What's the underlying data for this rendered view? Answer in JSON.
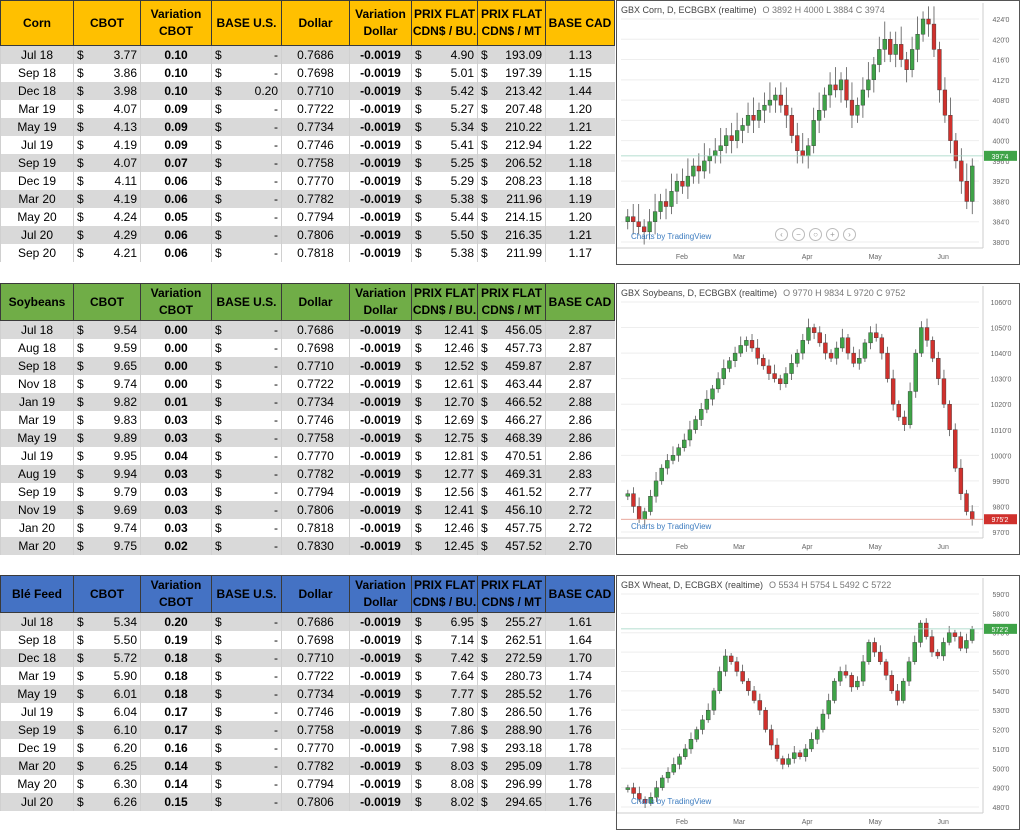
{
  "columns": [
    "CBOT",
    "Variation CBOT",
    "BASE U.S.",
    "Dollar",
    "Variation Dollar",
    "PRIX FLAT CDN$ / BU.",
    "PRIX FLAT CDN$ / MT",
    "BASE CAD"
  ],
  "colors": {
    "corn": "#ffc000",
    "soybeans": "#70ad47",
    "wheat": "#4472c4",
    "positive": "#19a84e",
    "negative": "#e00000",
    "bull": "#3fa348",
    "bear": "#d0312d"
  },
  "sections": [
    {
      "name": "Corn",
      "header": [
        "CBOT",
        "Variation\nCBOT",
        "BASE U.S.",
        "Dollar",
        "Variation\nDollar",
        "PRIX FLAT\nCDN$ / BU.",
        "PRIX FLAT\nCDN$ / MT",
        "BASE CAD"
      ],
      "rows": [
        [
          "Jul 18",
          "3.77",
          "0.10",
          "-",
          "0.7686",
          "-0.0019",
          "4.90",
          "193.09",
          "1.13"
        ],
        [
          "Sep 18",
          "3.86",
          "0.10",
          "-",
          "0.7698",
          "-0.0019",
          "5.01",
          "197.39",
          "1.15"
        ],
        [
          "Dec 18",
          "3.98",
          "0.10",
          "0.20",
          "0.7710",
          "-0.0019",
          "5.42",
          "213.42",
          "1.44"
        ],
        [
          "Mar 19",
          "4.07",
          "0.09",
          "-",
          "0.7722",
          "-0.0019",
          "5.27",
          "207.48",
          "1.20"
        ],
        [
          "May 19",
          "4.13",
          "0.09",
          "-",
          "0.7734",
          "-0.0019",
          "5.34",
          "210.22",
          "1.21"
        ],
        [
          "Jul 19",
          "4.19",
          "0.09",
          "-",
          "0.7746",
          "-0.0019",
          "5.41",
          "212.94",
          "1.22"
        ],
        [
          "Sep 19",
          "4.07",
          "0.07",
          "-",
          "0.7758",
          "-0.0019",
          "5.25",
          "206.52",
          "1.18"
        ],
        [
          "Dec 19",
          "4.11",
          "0.06",
          "-",
          "0.7770",
          "-0.0019",
          "5.29",
          "208.23",
          "1.18"
        ],
        [
          "Mar 20",
          "4.19",
          "0.06",
          "-",
          "0.7782",
          "-0.0019",
          "5.38",
          "211.96",
          "1.19"
        ],
        [
          "May 20",
          "4.24",
          "0.05",
          "-",
          "0.7794",
          "-0.0019",
          "5.44",
          "214.15",
          "1.20"
        ],
        [
          "Jul 20",
          "4.29",
          "0.06",
          "-",
          "0.7806",
          "-0.0019",
          "5.50",
          "216.35",
          "1.21"
        ],
        [
          "Sep 20",
          "4.21",
          "0.06",
          "-",
          "0.7818",
          "-0.0019",
          "5.38",
          "211.99",
          "1.17"
        ]
      ],
      "chart": {
        "title": "GBX Corn, D, ECBGBX (realtime)",
        "ohlc": "O 3892 H 4000 L 3884 C 3974",
        "yticks": [
          "424'0",
          "420'0",
          "416'0",
          "412'0",
          "408'0",
          "404'0",
          "400'0",
          "396'0",
          "392'0",
          "388'0",
          "384'0",
          "380'0"
        ],
        "xticks": [
          "Feb",
          "Mar",
          "Apr",
          "May",
          "Jun"
        ],
        "last": "397'4",
        "closes": [
          385,
          384,
          383,
          382,
          384,
          386,
          388,
          387,
          390,
          392,
          391,
          393,
          395,
          394,
          396,
          397,
          398,
          399,
          401,
          400,
          402,
          403,
          405,
          404,
          406,
          407,
          408,
          409,
          407,
          405,
          401,
          398,
          397,
          399,
          404,
          406,
          409,
          411,
          410,
          412,
          408,
          405,
          407,
          410,
          412,
          415,
          418,
          420,
          417,
          419,
          416,
          414,
          418,
          421,
          424,
          423,
          418,
          410,
          405,
          400,
          396,
          392,
          388,
          395
        ]
      },
      "watermark": "Charts by TradingView"
    },
    {
      "name": "Soybeans",
      "header": [
        "CBOT",
        "Variation\nCBOT",
        "BASE U.S.",
        "Dollar",
        "Variation\nDollar",
        "PRIX FLAT\nCDN$ / BU.",
        "PRIX FLAT\nCDN$ / MT",
        "BASE CAD"
      ],
      "rows": [
        [
          "Jul 18",
          "9.54",
          "0.00",
          "-",
          "0.7686",
          "-0.0019",
          "12.41",
          "456.05",
          "2.87"
        ],
        [
          "Aug 18",
          "9.59",
          "0.00",
          "-",
          "0.7698",
          "-0.0019",
          "12.46",
          "457.73",
          "2.87"
        ],
        [
          "Sep 18",
          "9.65",
          "0.00",
          "-",
          "0.7710",
          "-0.0019",
          "12.52",
          "459.87",
          "2.87"
        ],
        [
          "Nov 18",
          "9.74",
          "0.00",
          "-",
          "0.7722",
          "-0.0019",
          "12.61",
          "463.44",
          "2.87"
        ],
        [
          "Jan 19",
          "9.82",
          "0.01",
          "-",
          "0.7734",
          "-0.0019",
          "12.70",
          "466.52",
          "2.88"
        ],
        [
          "Mar 19",
          "9.83",
          "0.03",
          "-",
          "0.7746",
          "-0.0019",
          "12.69",
          "466.27",
          "2.86"
        ],
        [
          "May 19",
          "9.89",
          "0.03",
          "-",
          "0.7758",
          "-0.0019",
          "12.75",
          "468.39",
          "2.86"
        ],
        [
          "Jul 19",
          "9.95",
          "0.04",
          "-",
          "0.7770",
          "-0.0019",
          "12.81",
          "470.51",
          "2.86"
        ],
        [
          "Aug 19",
          "9.94",
          "0.03",
          "-",
          "0.7782",
          "-0.0019",
          "12.77",
          "469.31",
          "2.83"
        ],
        [
          "Sep 19",
          "9.79",
          "0.03",
          "-",
          "0.7794",
          "-0.0019",
          "12.56",
          "461.52",
          "2.77"
        ],
        [
          "Nov 19",
          "9.69",
          "0.03",
          "-",
          "0.7806",
          "-0.0019",
          "12.41",
          "456.10",
          "2.72"
        ],
        [
          "Jan 20",
          "9.74",
          "0.03",
          "-",
          "0.7818",
          "-0.0019",
          "12.46",
          "457.75",
          "2.72"
        ],
        [
          "Mar 20",
          "9.75",
          "0.02",
          "-",
          "0.7830",
          "-0.0019",
          "12.45",
          "457.52",
          "2.70"
        ]
      ],
      "chart": {
        "title": "GBX Soybeans, D, ECBGBX (realtime)",
        "ohlc": "O 9770 H 9834 L 9720 C 9752",
        "yticks": [
          "1060'0",
          "1050'0",
          "1040'0",
          "1030'0",
          "1020'0",
          "1010'0",
          "1000'0",
          "990'0",
          "980'0",
          "970'0"
        ],
        "xticks": [
          "Feb",
          "Mar",
          "Apr",
          "May",
          "Jun"
        ],
        "last": "975'2",
        "closes": [
          985,
          980,
          975,
          978,
          984,
          990,
          995,
          998,
          1000,
          1003,
          1006,
          1010,
          1014,
          1018,
          1022,
          1026,
          1030,
          1034,
          1037,
          1040,
          1043,
          1045,
          1042,
          1038,
          1035,
          1032,
          1030,
          1028,
          1032,
          1036,
          1040,
          1045,
          1050,
          1048,
          1044,
          1040,
          1038,
          1042,
          1046,
          1040,
          1036,
          1038,
          1044,
          1048,
          1046,
          1040,
          1030,
          1020,
          1015,
          1012,
          1025,
          1040,
          1050,
          1045,
          1038,
          1030,
          1020,
          1010,
          995,
          985,
          978,
          975
        ]
      },
      "watermark": "Charts by TradingView"
    },
    {
      "name": "Blé Feed",
      "header": [
        "CBOT",
        "Variation\nCBOT",
        "BASE U.S.",
        "Dollar",
        "Variation\nDollar",
        "PRIX FLAT\nCDN$ / BU.",
        "PRIX FLAT\nCDN$ / MT",
        "BASE CAD"
      ],
      "rows": [
        [
          "Jul 18",
          "5.34",
          "0.20",
          "-",
          "0.7686",
          "-0.0019",
          "6.95",
          "255.27",
          "1.61"
        ],
        [
          "Sep 18",
          "5.50",
          "0.19",
          "-",
          "0.7698",
          "-0.0019",
          "7.14",
          "262.51",
          "1.64"
        ],
        [
          "Dec 18",
          "5.72",
          "0.18",
          "-",
          "0.7710",
          "-0.0019",
          "7.42",
          "272.59",
          "1.70"
        ],
        [
          "Mar 19",
          "5.90",
          "0.18",
          "-",
          "0.7722",
          "-0.0019",
          "7.64",
          "280.73",
          "1.74"
        ],
        [
          "May 19",
          "6.01",
          "0.18",
          "-",
          "0.7734",
          "-0.0019",
          "7.77",
          "285.52",
          "1.76"
        ],
        [
          "Jul 19",
          "6.04",
          "0.17",
          "-",
          "0.7746",
          "-0.0019",
          "7.80",
          "286.50",
          "1.76"
        ],
        [
          "Sep 19",
          "6.10",
          "0.17",
          "-",
          "0.7758",
          "-0.0019",
          "7.86",
          "288.90",
          "1.76"
        ],
        [
          "Dec 19",
          "6.20",
          "0.16",
          "-",
          "0.7770",
          "-0.0019",
          "7.98",
          "293.18",
          "1.78"
        ],
        [
          "Mar 20",
          "6.25",
          "0.14",
          "-",
          "0.7782",
          "-0.0019",
          "8.03",
          "295.09",
          "1.78"
        ],
        [
          "May 20",
          "6.30",
          "0.14",
          "-",
          "0.7794",
          "-0.0019",
          "8.08",
          "296.99",
          "1.78"
        ],
        [
          "Jul 20",
          "6.26",
          "0.15",
          "-",
          "0.7806",
          "-0.0019",
          "8.02",
          "294.65",
          "1.76"
        ]
      ],
      "chart": {
        "title": "GBX Wheat, D, ECBGBX (realtime)",
        "ohlc": "O 5534 H 5754 L 5492 C 5722",
        "yticks": [
          "590'0",
          "580'0",
          "570'0",
          "560'0",
          "550'0",
          "540'0",
          "530'0",
          "520'0",
          "510'0",
          "500'0",
          "490'0",
          "480'0"
        ],
        "xticks": [
          "Feb",
          "Mar",
          "Apr",
          "May",
          "Jun"
        ],
        "last": "572'2",
        "closes": [
          490,
          487,
          484,
          482,
          485,
          490,
          495,
          498,
          502,
          506,
          510,
          515,
          520,
          525,
          530,
          540,
          550,
          558,
          555,
          550,
          545,
          540,
          535,
          530,
          520,
          512,
          505,
          502,
          505,
          508,
          506,
          510,
          515,
          520,
          528,
          535,
          545,
          550,
          548,
          542,
          545,
          555,
          565,
          560,
          555,
          548,
          540,
          535,
          545,
          555,
          565,
          575,
          568,
          560,
          558,
          565,
          570,
          568,
          562,
          566,
          572
        ]
      },
      "watermark": "Charts by TradingView"
    }
  ]
}
